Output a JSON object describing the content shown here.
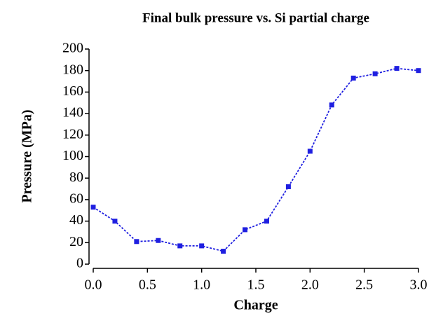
{
  "chart_data": {
    "type": "line",
    "title": "Final bulk pressure vs. Si partial charge",
    "x_label": "Charge",
    "y_label": "Pressure  (MPa)",
    "x": [
      0,
      0.2,
      0.4,
      0.6,
      0.8,
      1.0,
      1.2,
      1.4,
      1.6,
      1.8,
      2.0,
      2.2,
      2.4,
      2.6,
      2.8,
      3.0
    ],
    "series": [
      {
        "name": "Pressure",
        "color": "#1f1fe0",
        "values": [
          53,
          40,
          21,
          22,
          17,
          17,
          12,
          32,
          40,
          72,
          105,
          148,
          173,
          177,
          182,
          180
        ]
      }
    ],
    "xlim": [
      0,
      3
    ],
    "xticks": [
      {
        "value": 0,
        "label": "0.0"
      },
      {
        "value": 0.5,
        "label": "0.5"
      },
      {
        "value": 1,
        "label": "1.0"
      },
      {
        "value": 1.5,
        "label": "1.5"
      },
      {
        "value": 2,
        "label": "2.0"
      },
      {
        "value": 2.5,
        "label": "2.5"
      },
      {
        "value": 3,
        "label": "3.0"
      }
    ],
    "ylim": [
      0,
      200
    ],
    "yticks": [
      0,
      20,
      40,
      60,
      80,
      100,
      120,
      140,
      160,
      180,
      200
    ]
  }
}
